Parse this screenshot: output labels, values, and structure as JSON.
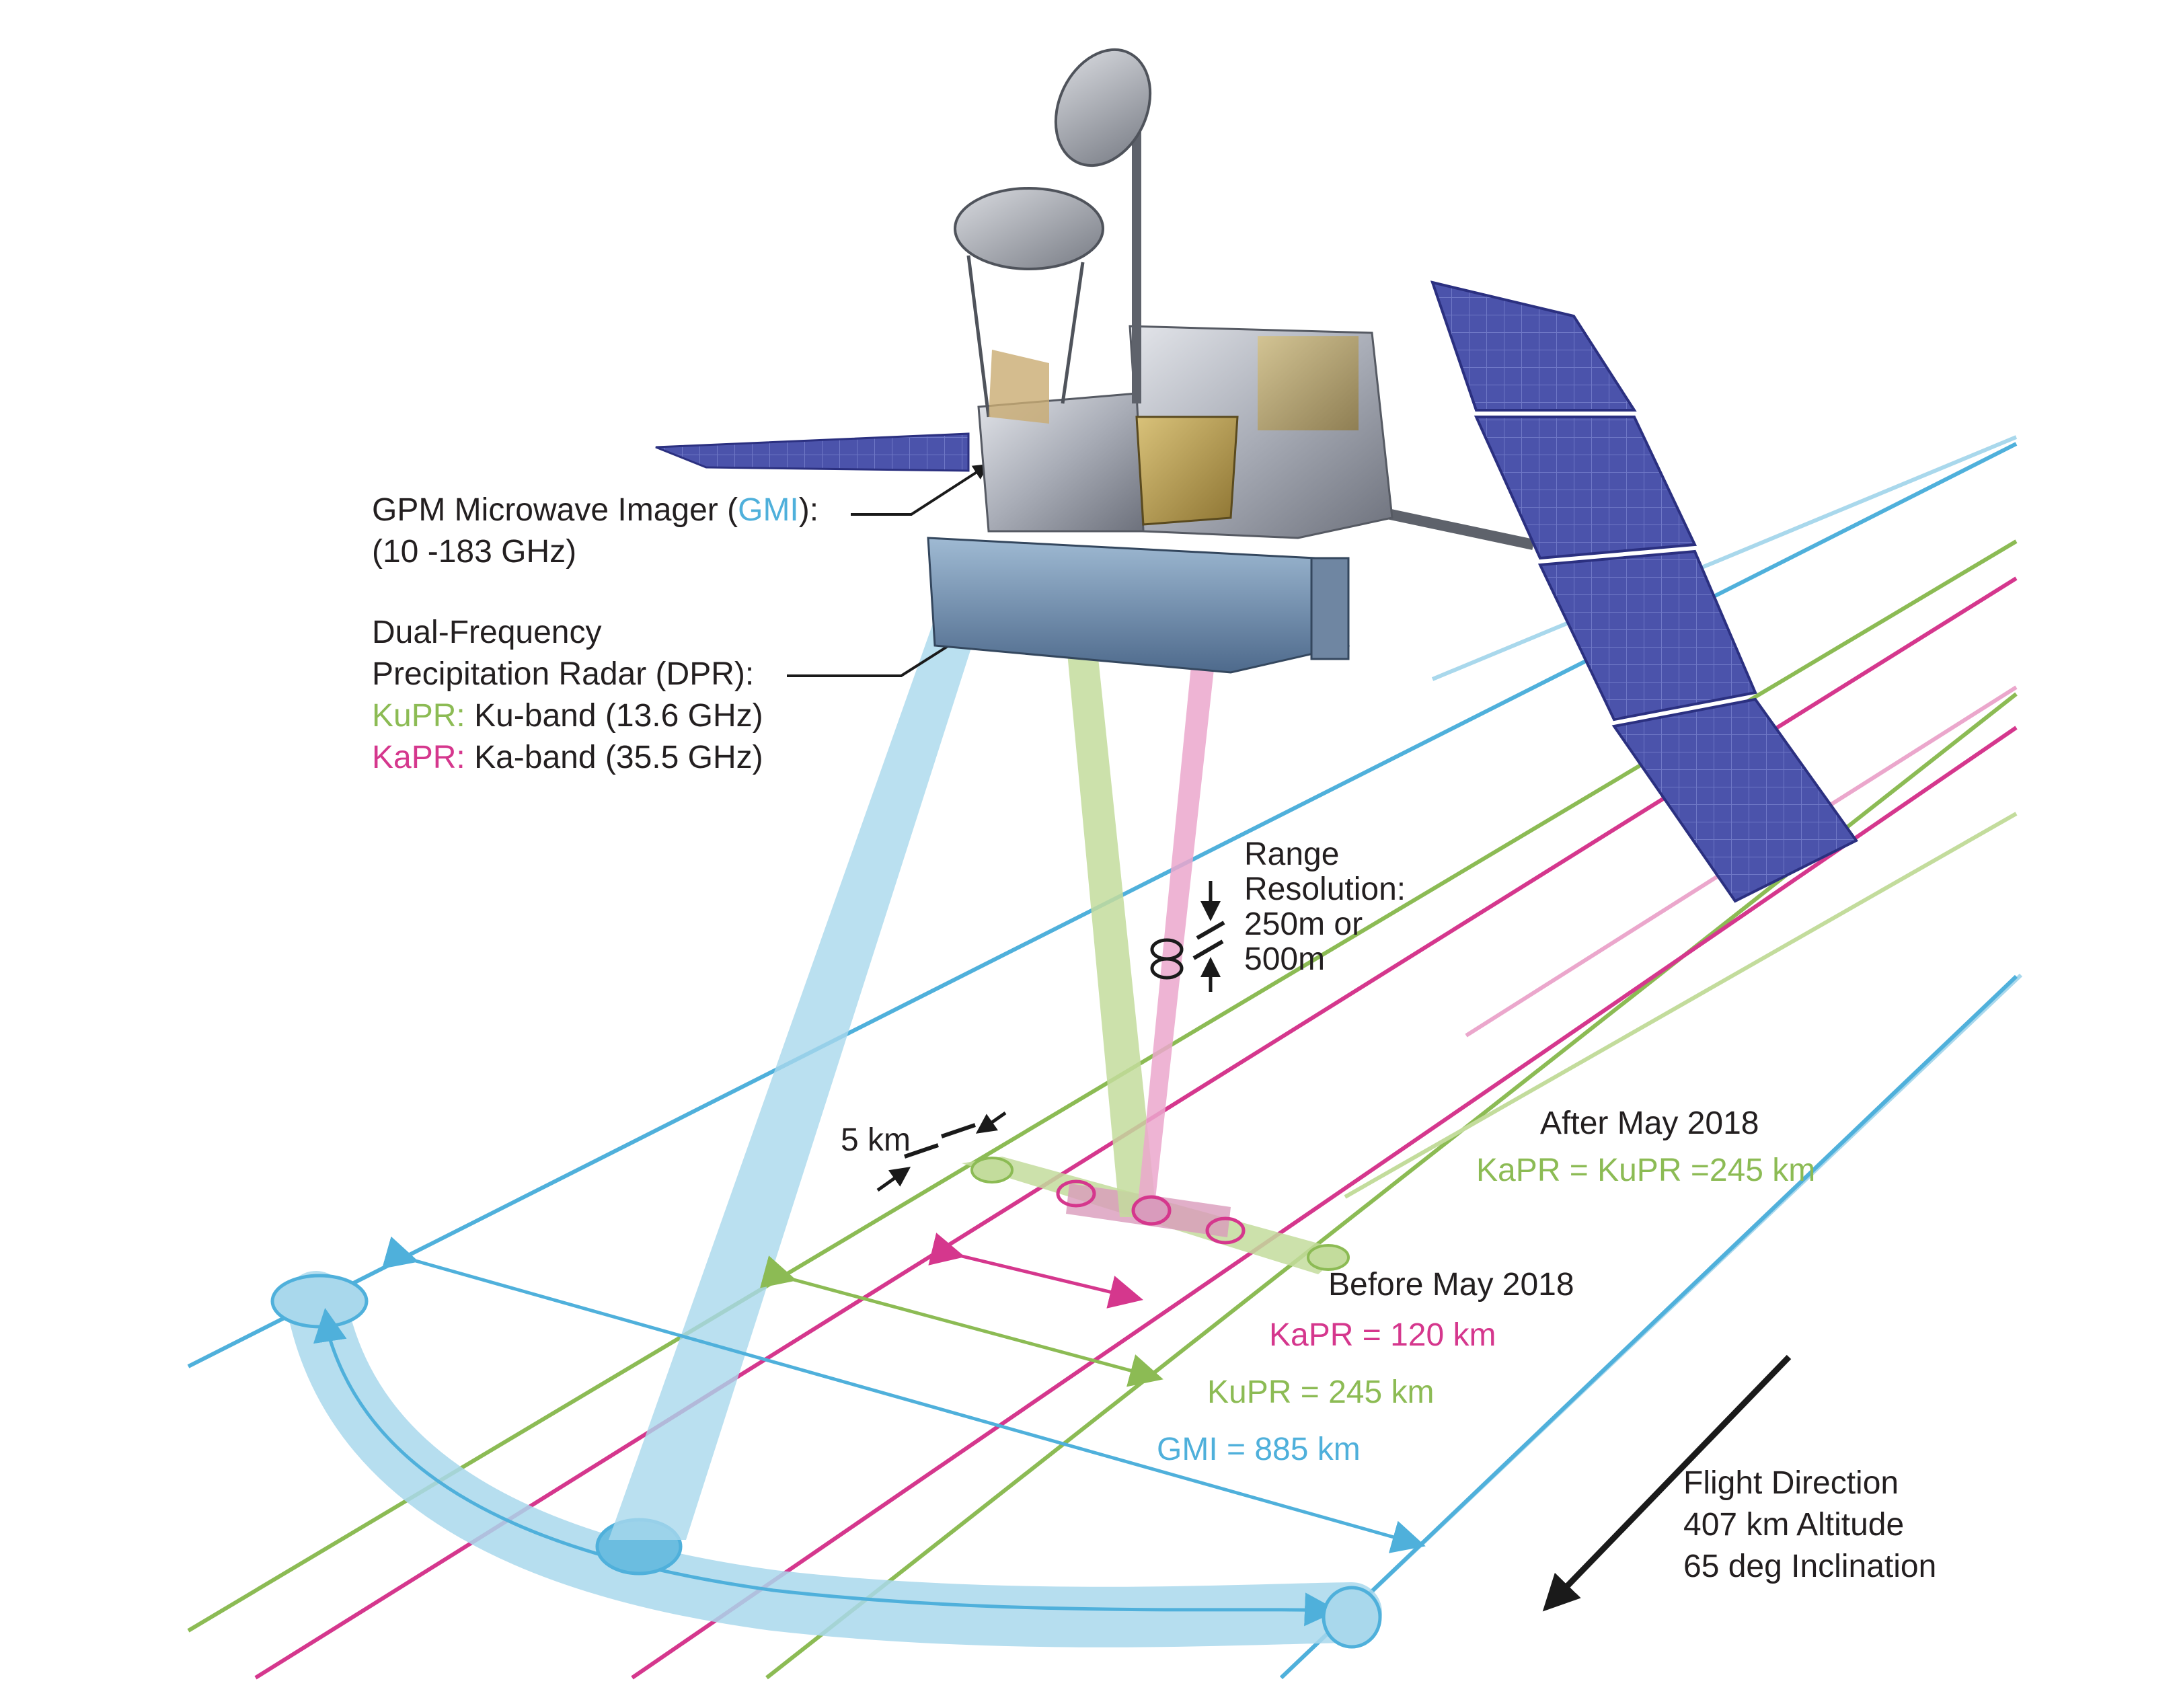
{
  "colors": {
    "gmi": "#4fb0db",
    "gmi_light": "#a9d8ec",
    "kupr": "#8cbb54",
    "kupr_light": "#c3dc9c",
    "kapr": "#d5378d",
    "kapr_light": "#eba7cc",
    "text": "#231f20",
    "arrow": "#1a1a1a",
    "solar_panel": "#4a52a8",
    "satellite_body": "#b9bcc4"
  },
  "icons": [
    "satellite-illustration",
    "flight-direction-arrow",
    "dimension-arrow"
  ],
  "gmi_label": {
    "line1_prefix": "GPM Microwave Imager (",
    "line1_acronym": "GMI",
    "line1_suffix": "):",
    "line2": "(10 -183 GHz)"
  },
  "dpr_label": {
    "line1": "Dual-Frequency",
    "line2": "Precipitation Radar (DPR):",
    "kupr_prefix": "KuPR:",
    "kupr_text": "Ku-band (13.6 GHz)",
    "kapr_prefix": "KaPR:",
    "kapr_text": "Ka-band (35.5 GHz)"
  },
  "range_resolution": {
    "line1": "Range",
    "line2": "Resolution:",
    "line3": "250m or",
    "line4": "500m"
  },
  "footprint_label": "5 km",
  "after_may_2018": {
    "heading": "After May 2018",
    "value": "KaPR = KuPR =245 km"
  },
  "before_may_2018": {
    "heading": "Before May 2018",
    "kapr": "KaPR = 120 km",
    "kupr": "KuPR = 245 km",
    "gmi": "GMI = 885 km"
  },
  "flight_info": {
    "line1": "Flight Direction",
    "line2": "407 km Altitude",
    "line3": "65 deg Inclination"
  }
}
